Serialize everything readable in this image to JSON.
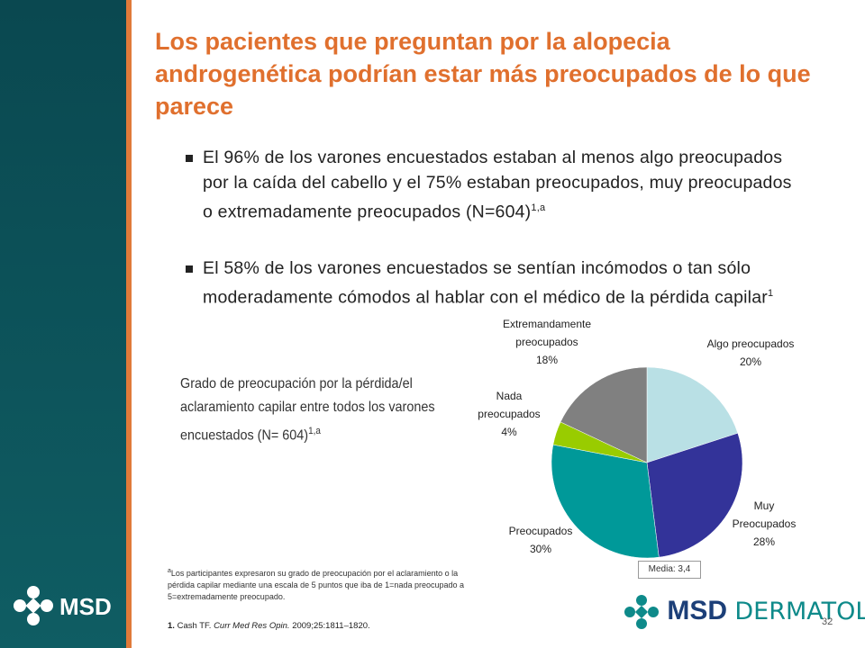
{
  "header": {
    "title": "Los pacientes que preguntan por la alopecia androgenética podrían estar más preocupados de lo que parece"
  },
  "bullets": [
    {
      "text": "El 96% de los varones encuestados estaban al menos algo preocupados por la caída del cabello y el 75% estaban preocupados, muy preocupados o extremadamente preocupados (N=604)",
      "sup": "1,a"
    },
    {
      "text": "El 58% de los varones encuestados se sentían incómodos o tan sólo moderadamente cómodos al hablar con el médico de la pérdida capilar",
      "sup": "1"
    }
  ],
  "caption": {
    "text": "Grado de preocupación por la pérdida/el aclaramiento capilar entre todos los varones encuestados (N= 604)",
    "sup": "1,a"
  },
  "chart_data": {
    "type": "pie",
    "categories": [
      "Algo preocupados",
      "Muy Preocupados",
      "Preocupados",
      "Nada preocupados",
      "Extremandamente preocupados"
    ],
    "values": [
      20,
      28,
      30,
      4,
      18
    ],
    "value_labels": [
      "20%",
      "28%",
      "30%",
      "4%",
      "18%"
    ],
    "colors": [
      "#b9e0e5",
      "#333399",
      "#009999",
      "#99cc00",
      "#808080"
    ],
    "note": "Media: 3,4"
  },
  "footnote": {
    "sup": "a",
    "text": "Los participantes expresaron su grado de preocupación por el aclaramiento o la pérdida capilar mediante una escala de 5 puntos que iba de 1=nada preocupado a 5=extremadamente preocupado."
  },
  "reference": {
    "number": "1.",
    "author": "Cash TF.",
    "journal": "Curr Med Res Opin.",
    "details": "2009;25:1811–1820."
  },
  "logos": {
    "left": "MSD",
    "right_brand": "MSD",
    "right_area": "DERMATOLOGÍA"
  },
  "page_number": "32"
}
